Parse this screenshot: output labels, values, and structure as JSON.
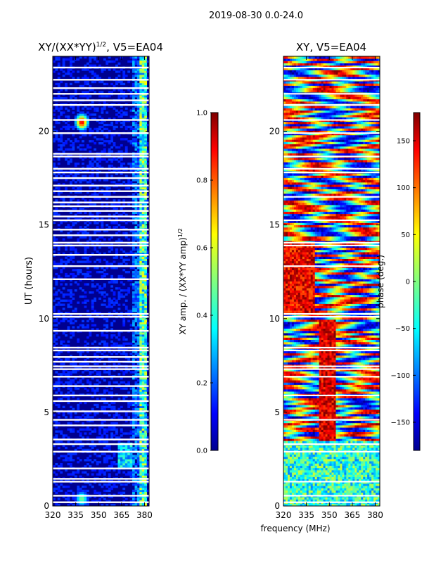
{
  "suptitle": "2019-08-30 0.0-24.0",
  "xlabel_shared": "frequency (MHz)",
  "colors": {
    "background": "#ffffff",
    "axes": "#000000",
    "base_blue": "#00008f",
    "gap_white": "#ffffff"
  },
  "chart_data": [
    {
      "type": "heatmap",
      "title": "XY/(XX*YY)",
      "title_superscript": "1/2",
      "title_suffix": ", V5=EA04",
      "xlabel": "",
      "ylabel": "UT (hours)",
      "x_ticks": [
        320,
        335,
        350,
        365,
        380
      ],
      "x_tick_labels": [
        "320",
        "335",
        "350",
        "365",
        "380"
      ],
      "xlim": [
        320,
        383
      ],
      "y_ticks": [
        0,
        5,
        10,
        15,
        20
      ],
      "y_tick_labels": [
        "0",
        "5",
        "10",
        "15",
        "20"
      ],
      "ylim": [
        0,
        24
      ],
      "colormap": "jet",
      "colorbar": {
        "label": "XY amp. / (XX*YY amp)",
        "label_superscript": "1/2",
        "range": [
          0.0,
          1.0
        ],
        "ticks": [
          0.0,
          0.2,
          0.4,
          0.6,
          0.8,
          1.0
        ],
        "tick_labels": [
          "0.0",
          "0.2",
          "0.4",
          "0.6",
          "0.8",
          "1.0"
        ]
      },
      "gap_hours": [
        0.2,
        0.55,
        1.3,
        1.45,
        2.0,
        2.9,
        3.3,
        3.55,
        4.3,
        4.6,
        5.05,
        5.6,
        5.9,
        6.4,
        6.9,
        7.3,
        7.45,
        7.7,
        7.95,
        8.3,
        8.45,
        9.35,
        10.1,
        10.25,
        12.1,
        12.8,
        13.4,
        13.9,
        14.05,
        14.45,
        14.75,
        15.25,
        15.45,
        15.75,
        16.0,
        16.2,
        16.5,
        16.8,
        17.1,
        17.5,
        17.8,
        18.0,
        18.65,
        18.8,
        19.9,
        20.6,
        21.4,
        21.65,
        22.0,
        22.3,
        22.75,
        23.4
      ],
      "features": [
        {
          "kind": "hot_column",
          "freq_range": [
            377,
            382
          ],
          "mean_value": 0.45
        },
        {
          "kind": "warm_column",
          "freq_range": [
            372,
            377
          ],
          "mean_value": 0.25
        },
        {
          "kind": "hot_spot",
          "ut": 20.5,
          "freq": 339,
          "value": 0.9
        },
        {
          "kind": "hot_spot",
          "ut": 0.4,
          "freq": 339,
          "value": 0.5
        },
        {
          "kind": "warm_block",
          "ut_range": [
            2.0,
            3.4
          ],
          "freq_range": [
            363,
            372
          ],
          "mean_value": 0.35
        }
      ]
    },
    {
      "type": "heatmap",
      "title": "XY, V5=EA04",
      "xlabel": "",
      "ylabel": "",
      "x_ticks": [
        320,
        335,
        350,
        365,
        380
      ],
      "x_tick_labels": [
        "320",
        "335",
        "350",
        "365",
        "380"
      ],
      "xlim": [
        320,
        383
      ],
      "y_ticks": [
        0,
        5,
        10,
        15,
        20
      ],
      "y_tick_labels": [
        "0",
        "5",
        "10",
        "15",
        "20"
      ],
      "ylim": [
        0,
        24
      ],
      "colormap": "jet",
      "colorbar": {
        "label": "phase (deg.)",
        "range": [
          -180,
          180
        ],
        "ticks": [
          -150,
          -100,
          -50,
          0,
          50,
          100,
          150
        ],
        "tick_labels": [
          "−150",
          "−100",
          "−50",
          "0",
          "50",
          "100",
          "150"
        ]
      },
      "gap_hours": [
        0.2,
        0.55,
        1.3,
        2.9,
        3.3,
        4.6,
        5.9,
        6.9,
        7.3,
        7.45,
        8.3,
        8.45,
        10.1,
        10.25,
        12.8,
        13.9,
        14.05,
        15.25,
        16.5,
        17.8,
        18.0,
        18.65,
        19.9,
        20.6,
        21.4,
        22.0,
        22.75,
        23.4
      ],
      "features": [
        {
          "kind": "red_region",
          "ut_range": [
            10.2,
            14.0
          ],
          "freq_range": [
            320,
            340
          ],
          "phase_deg": 140
        },
        {
          "kind": "red_band",
          "ut_range": [
            3.5,
            10.0
          ],
          "freq_range": [
            343,
            354
          ],
          "phase_deg": 150
        },
        {
          "kind": "green_low",
          "ut_range": [
            0.0,
            3.5
          ],
          "freq_range": [
            320,
            383
          ],
          "phase_deg": -30
        }
      ]
    }
  ]
}
